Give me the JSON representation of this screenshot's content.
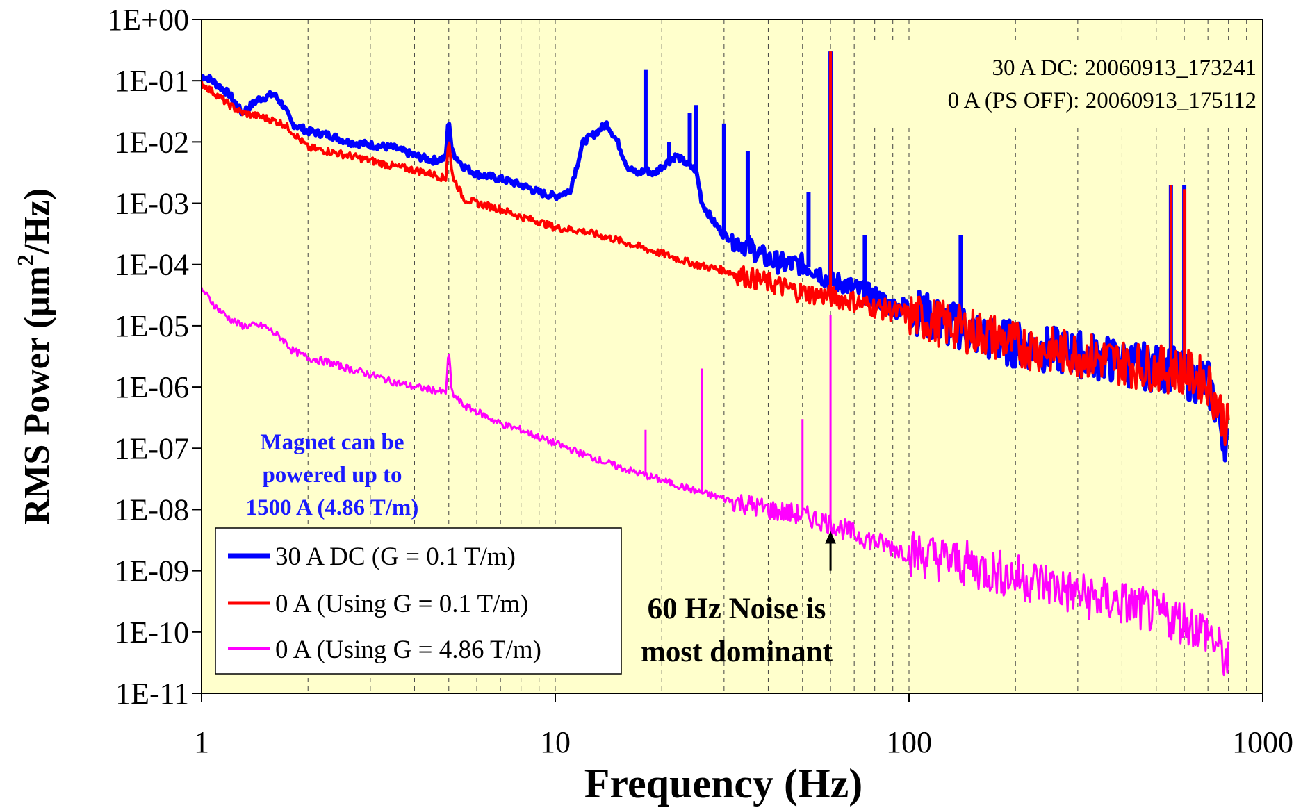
{
  "chart_data": {
    "type": "line",
    "xlabel": "Frequency (Hz)",
    "ylabel_main": "RMS Power (μm",
    "ylabel_sup": "2",
    "ylabel_tail": "/Hz)",
    "x_scale": "log",
    "y_scale": "log",
    "xlim": [
      1,
      1000
    ],
    "ylim": [
      1e-11,
      1
    ],
    "x_ticks": [
      "1",
      "10",
      "100",
      "1000"
    ],
    "y_ticks": [
      "1E+00",
      "1E-01",
      "1E-02",
      "1E-03",
      "1E-04",
      "1E-05",
      "1E-06",
      "1E-07",
      "1E-08",
      "1E-09",
      "1E-10",
      "1E-11"
    ],
    "grid": "vertical dashed",
    "plot_background": "#ffffcc",
    "series": [
      {
        "name": "30 A DC (G = 0.1 T/m)",
        "color": "#0000ff",
        "x": [
          1,
          1.05,
          1.2,
          1.3,
          1.45,
          1.6,
          1.7,
          1.8,
          2,
          2.3,
          2.6,
          3,
          3.5,
          4,
          4.5,
          4.9,
          5,
          5.1,
          5.5,
          6,
          7,
          8,
          9,
          10,
          11,
          12,
          13,
          14,
          15,
          16,
          17,
          18,
          19,
          20,
          22,
          24,
          25,
          26,
          28,
          30,
          35,
          40,
          45,
          50,
          55,
          60,
          65,
          70,
          80,
          90,
          100,
          110,
          120,
          130,
          140,
          150,
          170,
          200,
          250,
          300,
          350,
          400,
          500,
          550,
          600,
          700,
          800
        ],
        "y": [
          0.12,
          0.11,
          0.06,
          0.03,
          0.05,
          0.06,
          0.04,
          0.02,
          0.015,
          0.013,
          0.01,
          0.009,
          0.008,
          0.006,
          0.005,
          0.0055,
          0.025,
          0.007,
          0.004,
          0.003,
          0.0025,
          0.002,
          0.0015,
          0.0013,
          0.0016,
          0.01,
          0.014,
          0.02,
          0.01,
          0.004,
          0.003,
          0.0035,
          0.003,
          0.004,
          0.006,
          0.004,
          0.0035,
          0.001,
          0.0005,
          0.0003,
          0.0002,
          0.00012,
          0.0001,
          0.0001,
          8e-05,
          5e-05,
          5e-05,
          4e-05,
          3e-05,
          2e-05,
          2e-05,
          1.5e-05,
          1.2e-05,
          1e-05,
          1e-05,
          8e-06,
          6e-06,
          5e-06,
          4e-06,
          3.5e-06,
          3e-06,
          2.5e-06,
          2e-06,
          2e-06,
          1.5e-06,
          1.2e-06,
          1e-07
        ]
      },
      {
        "name": "0 A (Using G = 0.1 T/m)",
        "color": "#ff0000",
        "x": [
          1,
          1.1,
          1.2,
          1.3,
          1.5,
          1.7,
          1.8,
          2,
          2.3,
          2.6,
          3,
          3.5,
          4,
          4.5,
          4.9,
          5,
          5.1,
          5.5,
          6,
          7,
          8,
          9,
          10,
          12,
          15,
          20,
          25,
          30,
          40,
          50,
          60,
          70,
          80,
          100,
          130,
          170,
          200,
          250,
          300,
          400,
          500,
          600,
          700,
          800
        ],
        "y": [
          0.09,
          0.06,
          0.04,
          0.03,
          0.025,
          0.02,
          0.015,
          0.008,
          0.007,
          0.006,
          0.005,
          0.004,
          0.0035,
          0.003,
          0.0025,
          0.012,
          0.003,
          0.0012,
          0.001,
          0.0008,
          0.0006,
          0.0005,
          0.0004,
          0.00035,
          0.00025,
          0.00015,
          0.0001,
          8e-05,
          5e-05,
          3.5e-05,
          3e-05,
          2.5e-05,
          2e-05,
          1.5e-05,
          1e-05,
          7e-06,
          5e-06,
          4e-06,
          3.5e-06,
          2.5e-06,
          2e-06,
          1.8e-06,
          1.2e-06,
          2e-07
        ]
      },
      {
        "name": "0 A (Using G = 4.86 T/m)",
        "color": "#ff00ff",
        "x": [
          1,
          1.1,
          1.2,
          1.3,
          1.5,
          1.7,
          1.8,
          2,
          2.3,
          2.6,
          3,
          3.5,
          4,
          4.5,
          4.9,
          5,
          5.1,
          5.5,
          6,
          7,
          8,
          9,
          10,
          12,
          15,
          20,
          25,
          30,
          40,
          50,
          60,
          70,
          80,
          100,
          130,
          170,
          200,
          250,
          300,
          400,
          500,
          600,
          700,
          800
        ],
        "y": [
          4e-05,
          2e-05,
          1.3e-05,
          1e-05,
          1e-05,
          6e-06,
          4e-06,
          3e-06,
          2.5e-06,
          2e-06,
          1.6e-06,
          1.2e-06,
          1e-06,
          9e-07,
          8e-07,
          4e-06,
          8e-07,
          5e-07,
          4e-07,
          2.5e-07,
          2e-07,
          1.5e-07,
          1.2e-07,
          8e-08,
          5e-08,
          3e-08,
          2e-08,
          1.5e-08,
          1e-08,
          8e-09,
          6e-09,
          4e-09,
          3e-09,
          2e-09,
          1.5e-09,
          1e-09,
          8e-10,
          6e-10,
          4e-10,
          3e-10,
          2e-10,
          1.5e-10,
          1e-10,
          3e-11
        ]
      }
    ],
    "peaks": [
      {
        "series": 0,
        "x": 18,
        "y": 0.15
      },
      {
        "series": 0,
        "x": 21,
        "y": 0.01
      },
      {
        "series": 0,
        "x": 24,
        "y": 0.03
      },
      {
        "series": 0,
        "x": 25,
        "y": 0.04
      },
      {
        "series": 0,
        "x": 30,
        "y": 0.02
      },
      {
        "series": 0,
        "x": 35,
        "y": 0.007
      },
      {
        "series": 0,
        "x": 52,
        "y": 0.0015
      },
      {
        "series": 0,
        "x": 60,
        "y": 0.3
      },
      {
        "series": 0,
        "x": 75,
        "y": 0.0003
      },
      {
        "series": 0,
        "x": 140,
        "y": 0.0003
      },
      {
        "series": 0,
        "x": 550,
        "y": 0.002
      },
      {
        "series": 0,
        "x": 600,
        "y": 0.002
      },
      {
        "series": 1,
        "x": 60,
        "y": 0.3
      },
      {
        "series": 1,
        "x": 550,
        "y": 0.002
      },
      {
        "series": 1,
        "x": 600,
        "y": 0.0017
      },
      {
        "series": 2,
        "x": 60,
        "y": 1.5e-05
      },
      {
        "series": 2,
        "x": 50,
        "y": 3e-07
      },
      {
        "series": 2,
        "x": 26,
        "y": 2e-06
      },
      {
        "series": 2,
        "x": 18,
        "y": 2e-07
      }
    ],
    "annotations": {
      "run_ids_line1": "30 A DC: 20060913_173241",
      "run_ids_line2": "0 A (PS OFF): 20060913_175112",
      "magnet_line1": "Magnet can be",
      "magnet_line2": "powered up to",
      "magnet_line3": "1500 A (4.86 T/m)",
      "noise_line1": "60 Hz Noise is",
      "noise_line2": "most dominant",
      "arrow_x": 60,
      "arrow_y_from": 1e-09,
      "arrow_y_to": 4e-09
    }
  }
}
